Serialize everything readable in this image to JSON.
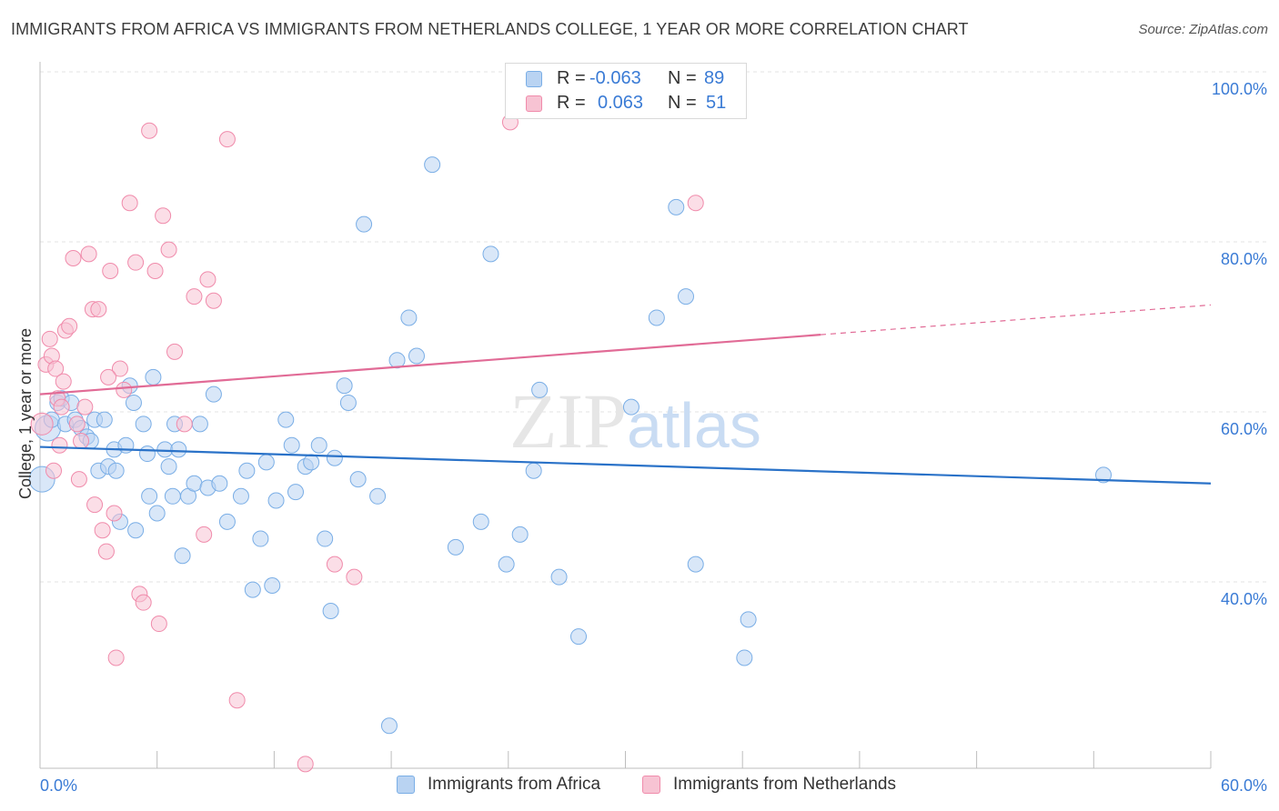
{
  "chart_data": {
    "type": "scatter",
    "title": "IMMIGRANTS FROM AFRICA VS IMMIGRANTS FROM NETHERLANDS COLLEGE, 1 YEAR OR MORE CORRELATION CHART",
    "source": "Source: ZipAtlas.com",
    "watermark": "ZIPatlas",
    "xlabel": "",
    "ylabel": "College, 1 year or more",
    "xlim": [
      0,
      60
    ],
    "ylim": [
      20,
      100
    ],
    "x_tick_labels": {
      "left": "0.0%",
      "right": "60.0%"
    },
    "y_ticks": [
      {
        "value": 40,
        "label": "40.0%"
      },
      {
        "value": 60,
        "label": "60.0%"
      },
      {
        "value": 80,
        "label": "80.0%"
      },
      {
        "value": 100,
        "label": "100.0%"
      }
    ],
    "grid": true,
    "legend_stats": [
      {
        "r_label": "R =",
        "r_value": "-0.063",
        "n_label": "N =",
        "n_value": "89"
      },
      {
        "r_label": "R =",
        "r_value": "0.063",
        "n_label": "N =",
        "n_value": "51"
      }
    ],
    "series": [
      {
        "name": "Immigrants from Africa",
        "color": "#7aaee6",
        "fill": "#b9d3f2",
        "line_color": "#2a72c8",
        "trend": {
          "x0": 0,
          "y0": 57.8,
          "x1": 60,
          "y1": 53.5
        },
        "points": [
          [
            0.1,
            54
          ],
          [
            0.4,
            60
          ],
          [
            0.6,
            61
          ],
          [
            0.9,
            63
          ],
          [
            1.1,
            63.5
          ],
          [
            1.3,
            60.5
          ],
          [
            1.6,
            63
          ],
          [
            1.8,
            61
          ],
          [
            2.1,
            60
          ],
          [
            2.4,
            59
          ],
          [
            2.6,
            58.5
          ],
          [
            2.8,
            61
          ],
          [
            3.0,
            55
          ],
          [
            3.3,
            61
          ],
          [
            3.5,
            55.5
          ],
          [
            3.8,
            57.5
          ],
          [
            3.9,
            55
          ],
          [
            4.1,
            49
          ],
          [
            4.4,
            58
          ],
          [
            4.6,
            65
          ],
          [
            4.8,
            63
          ],
          [
            4.9,
            48
          ],
          [
            5.3,
            60.5
          ],
          [
            5.5,
            57
          ],
          [
            5.6,
            52
          ],
          [
            5.8,
            66
          ],
          [
            6.0,
            50
          ],
          [
            6.4,
            57.5
          ],
          [
            6.6,
            55.5
          ],
          [
            6.8,
            52
          ],
          [
            6.9,
            60.5
          ],
          [
            7.1,
            57.5
          ],
          [
            7.3,
            45
          ],
          [
            7.6,
            52
          ],
          [
            7.9,
            53.5
          ],
          [
            8.2,
            60.5
          ],
          [
            8.6,
            53
          ],
          [
            8.9,
            64
          ],
          [
            9.2,
            53.5
          ],
          [
            9.6,
            49
          ],
          [
            10.3,
            52
          ],
          [
            10.6,
            55
          ],
          [
            10.9,
            41
          ],
          [
            11.3,
            47
          ],
          [
            11.6,
            56
          ],
          [
            11.9,
            41.5
          ],
          [
            12.1,
            51.5
          ],
          [
            12.6,
            61
          ],
          [
            12.9,
            58
          ],
          [
            13.1,
            52.5
          ],
          [
            13.6,
            55.5
          ],
          [
            13.9,
            56
          ],
          [
            14.3,
            58
          ],
          [
            14.6,
            47
          ],
          [
            14.9,
            38.5
          ],
          [
            15.1,
            56.5
          ],
          [
            15.6,
            65
          ],
          [
            15.8,
            63
          ],
          [
            16.3,
            54
          ],
          [
            16.6,
            84
          ],
          [
            17.3,
            52
          ],
          [
            17.9,
            25
          ],
          [
            18.3,
            68
          ],
          [
            18.9,
            73
          ],
          [
            19.3,
            68.5
          ],
          [
            20.1,
            91
          ],
          [
            21.3,
            46
          ],
          [
            22.6,
            49
          ],
          [
            23.1,
            80.5
          ],
          [
            23.9,
            44
          ],
          [
            24.6,
            47.5
          ],
          [
            25.3,
            55
          ],
          [
            25.6,
            64.5
          ],
          [
            26.6,
            42.5
          ],
          [
            27.6,
            35.5
          ],
          [
            30.3,
            62.5
          ],
          [
            31.6,
            73
          ],
          [
            32.6,
            86
          ],
          [
            33.1,
            75.5
          ],
          [
            33.6,
            44
          ],
          [
            36.1,
            33
          ],
          [
            36.3,
            37.5
          ],
          [
            54.5,
            54.5
          ]
        ]
      },
      {
        "name": "Immigrants from Netherlands",
        "color": "#f08bab",
        "fill": "#f7c3d3",
        "line_color": "#e16b96",
        "trend": {
          "x0": 0,
          "y0": 64,
          "x1": 40,
          "y1": 71
        },
        "trend_dashed": {
          "x0": 40,
          "y0": 71,
          "x1": 60,
          "y1": 74.5
        },
        "points": [
          [
            0.1,
            60.5
          ],
          [
            0.3,
            67.5
          ],
          [
            0.6,
            68.5
          ],
          [
            0.8,
            67
          ],
          [
            0.9,
            63.5
          ],
          [
            1.1,
            62.5
          ],
          [
            1.3,
            71.5
          ],
          [
            1.5,
            72
          ],
          [
            1.7,
            80
          ],
          [
            1.9,
            60.5
          ],
          [
            2.1,
            58.5
          ],
          [
            2.3,
            62.5
          ],
          [
            2.5,
            80.5
          ],
          [
            2.7,
            74
          ],
          [
            3.0,
            74
          ],
          [
            3.2,
            48
          ],
          [
            3.4,
            45.5
          ],
          [
            3.6,
            78.5
          ],
          [
            3.8,
            50
          ],
          [
            3.9,
            33
          ],
          [
            4.1,
            67
          ],
          [
            4.3,
            64.5
          ],
          [
            4.6,
            86.5
          ],
          [
            4.9,
            79.5
          ],
          [
            5.1,
            40.5
          ],
          [
            5.3,
            39.5
          ],
          [
            5.6,
            95
          ],
          [
            5.9,
            78.5
          ],
          [
            6.1,
            37
          ],
          [
            6.3,
            85
          ],
          [
            6.6,
            81
          ],
          [
            6.9,
            69
          ],
          [
            7.4,
            60.5
          ],
          [
            7.9,
            75.5
          ],
          [
            8.4,
            47.5
          ],
          [
            8.6,
            77.5
          ],
          [
            8.9,
            75
          ],
          [
            9.6,
            94
          ],
          [
            10.1,
            28
          ],
          [
            0.5,
            70.5
          ],
          [
            1.2,
            65.5
          ],
          [
            2.0,
            54
          ],
          [
            0.7,
            55
          ],
          [
            2.8,
            51
          ],
          [
            3.5,
            66
          ],
          [
            1.0,
            58
          ],
          [
            13.6,
            20.5
          ],
          [
            15.1,
            44
          ],
          [
            16.1,
            42.5
          ],
          [
            24.1,
            96
          ],
          [
            33.6,
            86.5
          ]
        ]
      }
    ]
  },
  "legend_bottom": [
    "Immigrants from Africa",
    "Immigrants from Netherlands"
  ]
}
